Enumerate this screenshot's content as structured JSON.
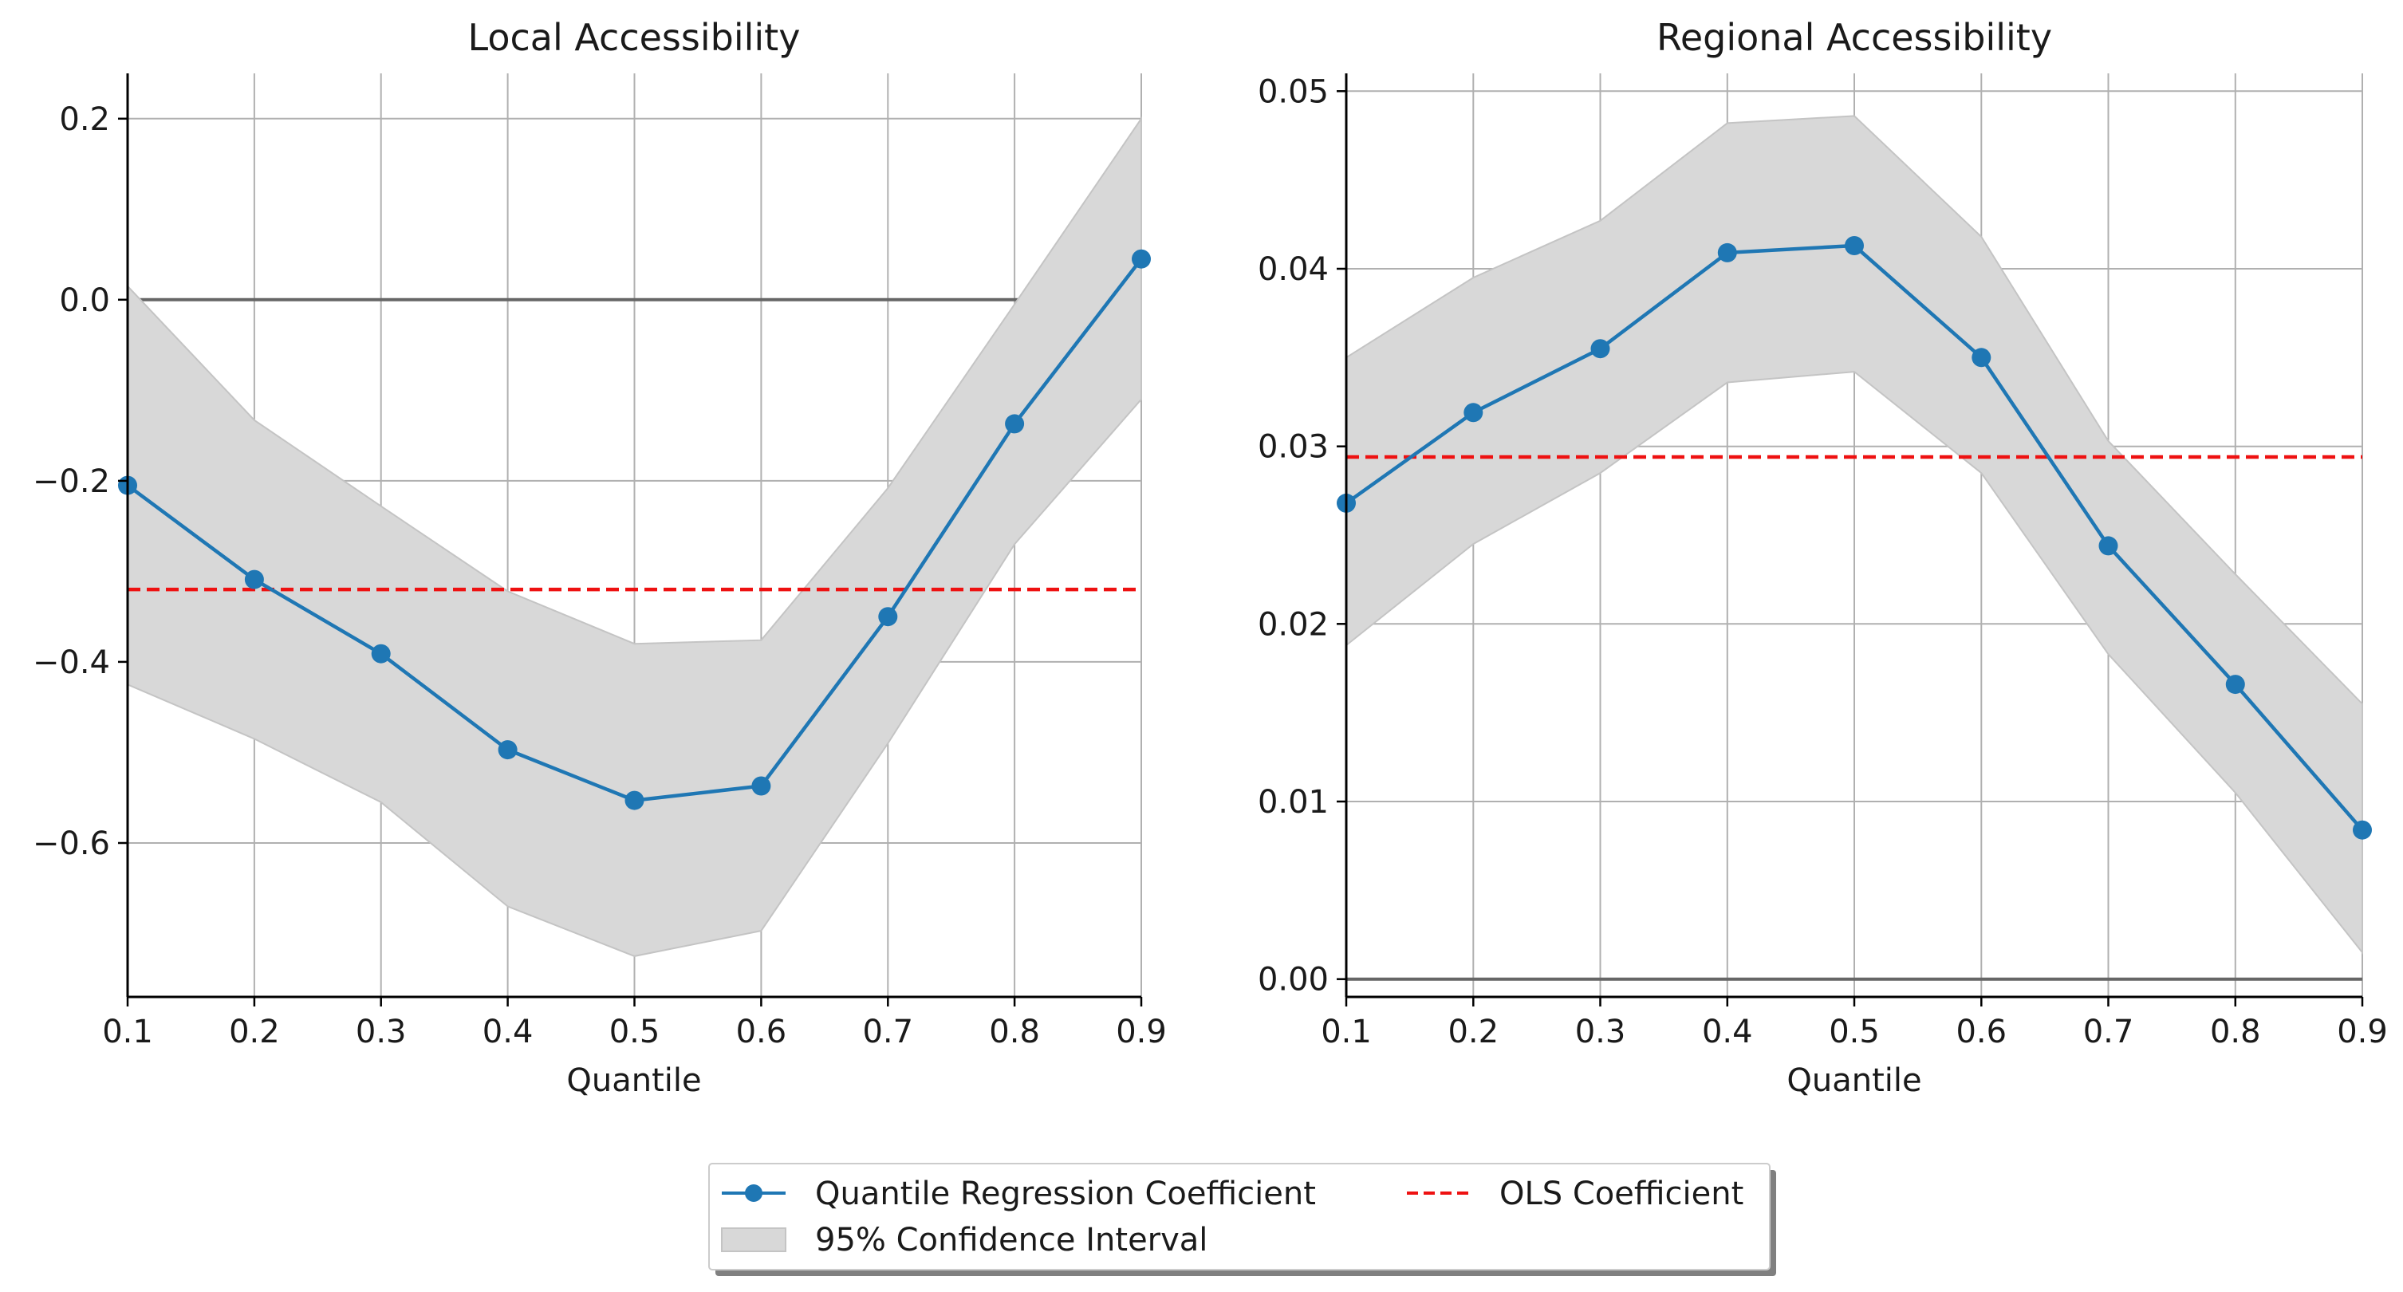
{
  "colors": {
    "coefficient_line": "#1f77b4",
    "ols_line": "#ee1111",
    "ci_fill": "#d8d8d8",
    "ci_edge": "#c4c4c4",
    "zero_line": "#666666",
    "grid": "#b0b0b0",
    "axis": "#000000"
  },
  "legend": {
    "items": [
      {
        "label": "Quantile Regression Coefficient",
        "kind": "line-marker",
        "color": "#1f77b4"
      },
      {
        "label": "OLS Coefficient",
        "kind": "dashed-line",
        "color": "#ee1111"
      },
      {
        "label": "95% Confidence Interval",
        "kind": "patch",
        "color": "#d8d8d8"
      }
    ],
    "placement": "bottom-center"
  },
  "chart_data": [
    {
      "type": "line",
      "title": "Local Accessibility",
      "xlabel": "Quantile",
      "ylabel": "",
      "xlim": [
        0.1,
        0.9
      ],
      "ylim": [
        -0.77,
        0.25
      ],
      "xticks": [
        0.1,
        0.2,
        0.3,
        0.4,
        0.5,
        0.6,
        0.7,
        0.8,
        0.9
      ],
      "xtick_labels": [
        "0.1",
        "0.2",
        "0.3",
        "0.4",
        "0.5",
        "0.6",
        "0.7",
        "0.8",
        "0.9"
      ],
      "yticks": [
        -0.6,
        -0.4,
        -0.2,
        0.0,
        0.2
      ],
      "ytick_labels": [
        "−0.6",
        "−0.4",
        "−0.2",
        "0.0",
        "0.2"
      ],
      "grid": true,
      "x": [
        0.1,
        0.2,
        0.3,
        0.4,
        0.5,
        0.6,
        0.7,
        0.8,
        0.9
      ],
      "series": [
        {
          "name": "Quantile Regression Coefficient",
          "values": [
            -0.205,
            -0.309,
            -0.391,
            -0.497,
            -0.553,
            -0.537,
            -0.35,
            -0.137,
            0.045
          ]
        }
      ],
      "ci_lower": [
        -0.425,
        -0.485,
        -0.555,
        -0.67,
        -0.725,
        -0.697,
        -0.49,
        -0.27,
        -0.11
      ],
      "ci_upper": [
        0.015,
        -0.133,
        -0.228,
        -0.322,
        -0.38,
        -0.376,
        -0.208,
        -0.005,
        0.2
      ],
      "ols": -0.32,
      "zero_line": 0.0
    },
    {
      "type": "line",
      "title": "Regional Accessibility",
      "xlabel": "Quantile",
      "ylabel": "",
      "xlim": [
        0.1,
        0.9
      ],
      "ylim": [
        -0.001,
        0.051
      ],
      "xticks": [
        0.1,
        0.2,
        0.3,
        0.4,
        0.5,
        0.6,
        0.7,
        0.8,
        0.9
      ],
      "xtick_labels": [
        "0.1",
        "0.2",
        "0.3",
        "0.4",
        "0.5",
        "0.6",
        "0.7",
        "0.8",
        "0.9"
      ],
      "yticks": [
        0.0,
        0.01,
        0.02,
        0.03,
        0.04,
        0.05
      ],
      "ytick_labels": [
        "0.00",
        "0.01",
        "0.02",
        "0.03",
        "0.04",
        "0.05"
      ],
      "grid": true,
      "x": [
        0.1,
        0.2,
        0.3,
        0.4,
        0.5,
        0.6,
        0.7,
        0.8,
        0.9
      ],
      "series": [
        {
          "name": "Quantile Regression Coefficient",
          "values": [
            0.0268,
            0.0319,
            0.0355,
            0.0409,
            0.0413,
            0.035,
            0.0244,
            0.0166,
            0.0084
          ]
        }
      ],
      "ci_lower": [
        0.0188,
        0.0245,
        0.0285,
        0.0336,
        0.0342,
        0.0285,
        0.0183,
        0.0105,
        0.0015
      ],
      "ci_upper": [
        0.035,
        0.0395,
        0.0427,
        0.0482,
        0.0486,
        0.0418,
        0.0303,
        0.0228,
        0.0155
      ],
      "ols": 0.0294,
      "zero_line": 0.0
    }
  ]
}
